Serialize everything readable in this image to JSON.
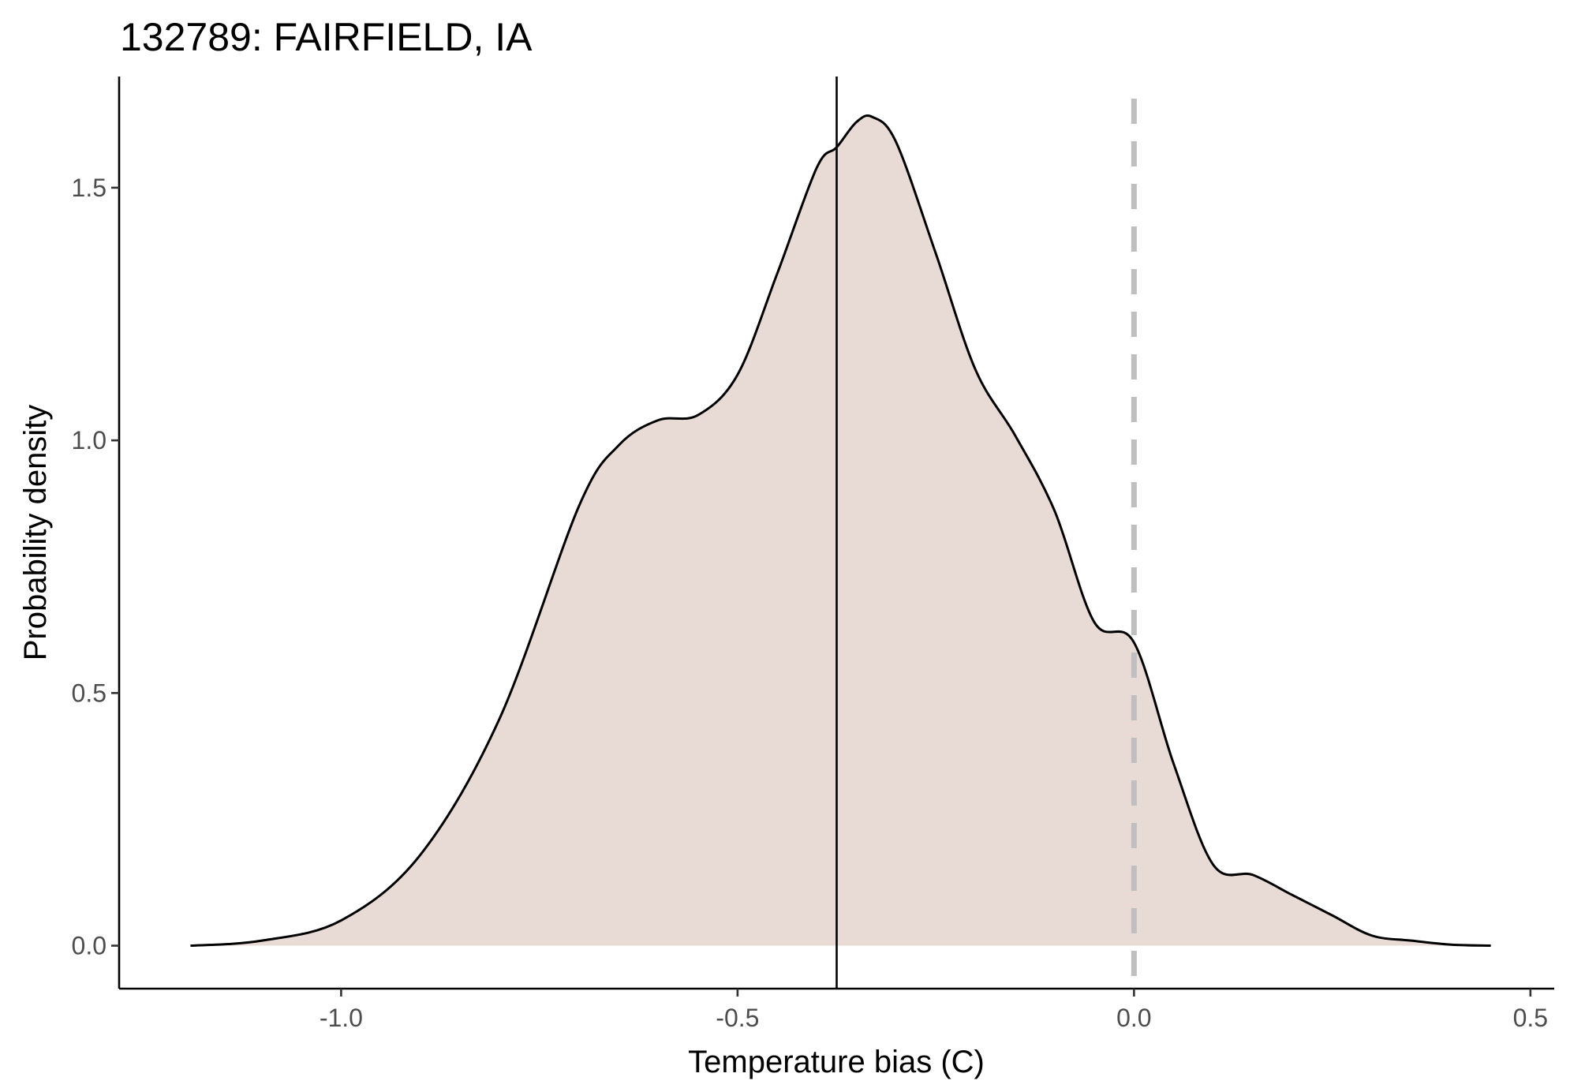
{
  "chart_data": {
    "type": "area",
    "title": "132789: FAIRFIELD, IA",
    "xlabel": "Temperature bias (C)",
    "ylabel": "Probability density",
    "xlim": [
      -1.28,
      0.53
    ],
    "ylim": [
      -0.085,
      1.72
    ],
    "x_ticks": [
      -1.0,
      -0.5,
      0.0,
      0.5
    ],
    "x_tick_labels": [
      "-1.0",
      "-0.5",
      "0.0",
      "0.5"
    ],
    "y_ticks": [
      0.0,
      0.5,
      1.0,
      1.5
    ],
    "y_tick_labels": [
      "0.0",
      "0.5",
      "1.0",
      "1.5"
    ],
    "grid": false,
    "legend": "none",
    "colors": {
      "fill": "#e8dbd6",
      "line": "#000000",
      "reference": "#bfbfbf"
    },
    "reference_lines": [
      {
        "x": -0.375,
        "style": "solid",
        "color": "#000000"
      },
      {
        "x": 0.0,
        "style": "dashed",
        "color": "#bfbfbf"
      }
    ],
    "series": [
      {
        "x": [
          -1.19,
          -1.1,
          -1.0,
          -0.9,
          -0.8,
          -0.7,
          -0.65,
          -0.6,
          -0.55,
          -0.5,
          -0.45,
          -0.4,
          -0.375,
          -0.35,
          -0.33,
          -0.3,
          -0.25,
          -0.2,
          -0.15,
          -0.1,
          -0.05,
          0.0,
          0.05,
          0.1,
          0.15,
          0.2,
          0.25,
          0.3,
          0.35,
          0.4,
          0.45
        ],
        "y": [
          0.0,
          0.01,
          0.05,
          0.18,
          0.45,
          0.87,
          0.99,
          1.04,
          1.05,
          1.13,
          1.33,
          1.54,
          1.58,
          1.63,
          1.64,
          1.59,
          1.37,
          1.14,
          1.01,
          0.86,
          0.64,
          0.6,
          0.36,
          0.16,
          0.14,
          0.1,
          0.06,
          0.02,
          0.01,
          0.002,
          0.0
        ]
      }
    ]
  }
}
